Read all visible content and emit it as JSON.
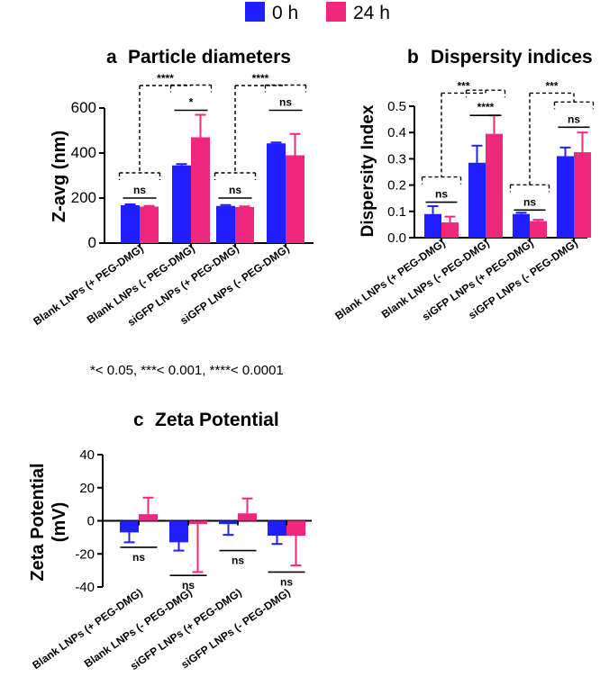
{
  "legend": {
    "items": [
      {
        "label": "0 h",
        "color": "#1f1fff"
      },
      {
        "label": "24 h",
        "color": "#f0287d"
      }
    ]
  },
  "footnote": "*< 0.05, ***< 0.001, ****< 0.0001",
  "chart_data": [
    {
      "panel": "a",
      "type": "bar",
      "title": "Particle diameters",
      "ylabel": "Z-avg (nm)",
      "ylim": [
        0,
        600
      ],
      "yticks": [
        0,
        200,
        400,
        600
      ],
      "categories": [
        "Blank LNPs (+ PEG-DMG)",
        "Blank LNPs (- PEG-DMG)",
        "siGFP LNPs (+ PEG-DMG)",
        "siGFP LNPs (- PEG-DMG)"
      ],
      "series": [
        {
          "name": "0 h",
          "values": [
            168,
            345,
            165,
            443
          ],
          "errors": [
            4,
            6,
            4,
            4
          ]
        },
        {
          "name": "24 h",
          "values": [
            162,
            470,
            160,
            390
          ],
          "errors": [
            3,
            100,
            3,
            95
          ]
        }
      ],
      "annotations": [
        {
          "type": "pair",
          "group": 0,
          "label": "ns",
          "y": 200
        },
        {
          "type": "pair",
          "group": 1,
          "label": "*",
          "y": 590
        },
        {
          "type": "pair",
          "group": 2,
          "label": "ns",
          "y": 200
        },
        {
          "type": "pair",
          "group": 3,
          "label": "ns",
          "y": 590
        },
        {
          "type": "across",
          "from": 0,
          "to": 1,
          "label": "****",
          "y": 700
        },
        {
          "type": "across",
          "from": 2,
          "to": 3,
          "label": "****",
          "y": 700
        }
      ]
    },
    {
      "panel": "b",
      "type": "bar",
      "title": "Dispersity indices",
      "ylabel": "Dispersity Index",
      "ylim": [
        0,
        0.5
      ],
      "yticks": [
        0.0,
        0.1,
        0.2,
        0.3,
        0.4,
        0.5
      ],
      "categories": [
        "Blank LNPs (+ PEG-DMG)",
        "Blank LNPs (- PEG-DMG)",
        "siGFP LNPs (+ PEG-DMG)",
        "siGFP LNPs (- PEG-DMG)"
      ],
      "series": [
        {
          "name": "0 h",
          "values": [
            0.09,
            0.285,
            0.09,
            0.31
          ],
          "errors": [
            0.03,
            0.065,
            0.005,
            0.033
          ]
        },
        {
          "name": "24 h",
          "values": [
            0.058,
            0.395,
            0.063,
            0.325
          ],
          "errors": [
            0.022,
            0.07,
            0.005,
            0.075
          ]
        }
      ],
      "annotations": [
        {
          "type": "pair",
          "group": 0,
          "label": "ns",
          "y": 0.135
        },
        {
          "type": "pair",
          "group": 1,
          "label": "****",
          "y": 0.465
        },
        {
          "type": "pair",
          "group": 2,
          "label": "ns",
          "y": 0.105
        },
        {
          "type": "pair",
          "group": 3,
          "label": "ns",
          "y": 0.42
        },
        {
          "type": "across",
          "from": 0,
          "to": 1,
          "label": "***",
          "y": 0.55
        },
        {
          "type": "across",
          "from": 2,
          "to": 3,
          "label": "***",
          "y": 0.55
        }
      ]
    },
    {
      "panel": "c",
      "type": "bar",
      "title": "Zeta Potential",
      "ylabel": "Zeta Potential (mV)",
      "ylabel_lines": [
        "Zeta Potential",
        "(mV)"
      ],
      "ylim": [
        -40,
        40
      ],
      "yticks": [
        -40,
        -20,
        0,
        20,
        40
      ],
      "categories": [
        "Blank LNPs (+ PEG-DMG)",
        "Blank LNPs (- PEG-DMG)",
        "siGFP LNPs (+ PEG-DMG)",
        "siGFP LNPs (- PEG-DMG)"
      ],
      "series": [
        {
          "name": "0 h",
          "values": [
            -7,
            -13,
            -2,
            -9
          ],
          "errors": [
            6,
            5,
            6.5,
            5
          ]
        },
        {
          "name": "24 h",
          "values": [
            4,
            -2,
            4.5,
            -9
          ],
          "errors": [
            10,
            29,
            9,
            18
          ]
        }
      ],
      "annotations": [
        {
          "type": "below",
          "group": 0,
          "label": "ns",
          "y": -16
        },
        {
          "type": "below",
          "group": 1,
          "label": "ns",
          "y": -33
        },
        {
          "type": "below",
          "group": 2,
          "label": "ns",
          "y": -18
        },
        {
          "type": "below",
          "group": 3,
          "label": "ns",
          "y": -31
        }
      ]
    }
  ]
}
